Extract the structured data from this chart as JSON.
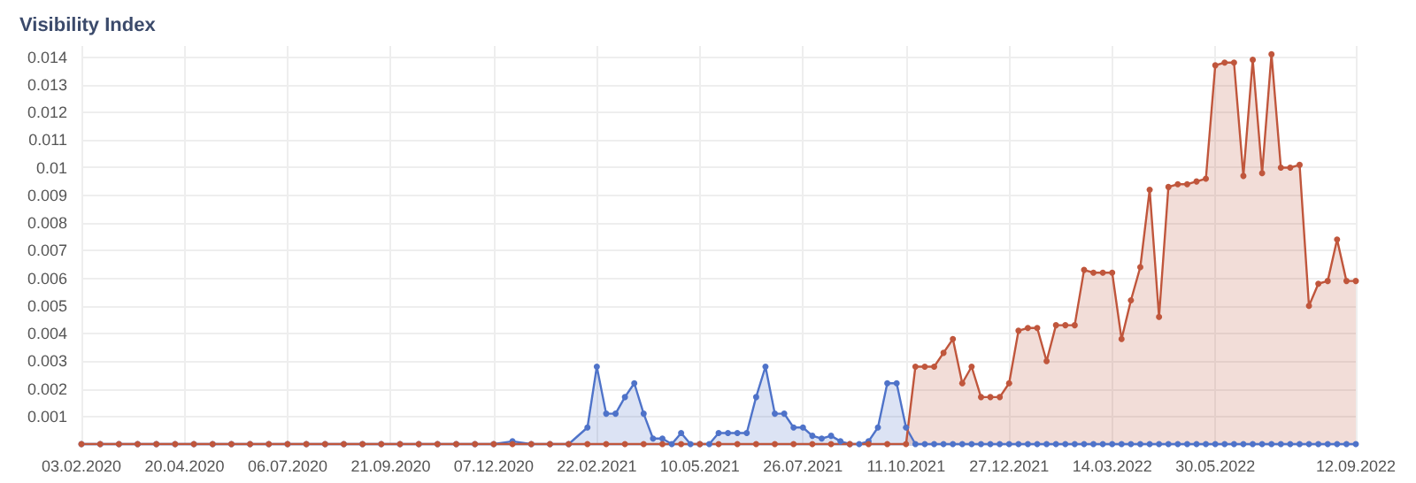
{
  "chart_data": {
    "type": "area",
    "title": "Visibility Index",
    "xlim": [
      "2020-02-03",
      "2022-09-12"
    ],
    "xticks": [
      {
        "value": "2020-02-03",
        "label": "03.02.2020"
      },
      {
        "value": "2020-04-20",
        "label": "20.04.2020"
      },
      {
        "value": "2020-07-06",
        "label": "06.07.2020"
      },
      {
        "value": "2020-09-21",
        "label": "21.09.2020"
      },
      {
        "value": "2020-12-07",
        "label": "07.12.2020"
      },
      {
        "value": "2021-02-22",
        "label": "22.02.2021"
      },
      {
        "value": "2021-05-10",
        "label": "10.05.2021"
      },
      {
        "value": "2021-07-26",
        "label": "26.07.2021"
      },
      {
        "value": "2021-10-11",
        "label": "11.10.2021"
      },
      {
        "value": "2021-12-27",
        "label": "27.12.2021"
      },
      {
        "value": "2022-03-14",
        "label": "14.03.2022"
      },
      {
        "value": "2022-05-30",
        "label": "30.05.2022"
      },
      {
        "value": "2022-09-12",
        "label": "12.09.2022"
      }
    ],
    "ylim": [
      0,
      0.0144
    ],
    "yticks": [
      {
        "value": 0,
        "label": null
      },
      0.001,
      0.002,
      0.003,
      0.004,
      0.005,
      0.006,
      0.007,
      0.008,
      0.009,
      0.01,
      0.011,
      0.012,
      0.013,
      0.014
    ],
    "grid": true,
    "marker": "circle",
    "series": [
      {
        "color": "#4f73c9",
        "x": [
          "2020-02-03",
          "2020-02-17",
          "2020-03-02",
          "2020-03-16",
          "2020-03-30",
          "2020-04-13",
          "2020-04-27",
          "2020-05-11",
          "2020-05-25",
          "2020-06-08",
          "2020-06-22",
          "2020-07-06",
          "2020-07-20",
          "2020-08-03",
          "2020-08-17",
          "2020-08-31",
          "2020-09-14",
          "2020-09-28",
          "2020-10-12",
          "2020-10-26",
          "2020-11-09",
          "2020-11-23",
          "2020-12-07",
          "2020-12-21",
          "2021-01-04",
          "2021-01-18",
          "2021-02-01",
          "2021-02-15",
          "2021-02-22",
          "2021-03-01",
          "2021-03-08",
          "2021-03-15",
          "2021-03-22",
          "2021-03-29",
          "2021-04-05",
          "2021-04-12",
          "2021-04-19",
          "2021-04-26",
          "2021-05-03",
          "2021-05-10",
          "2021-05-17",
          "2021-05-24",
          "2021-05-31",
          "2021-06-07",
          "2021-06-14",
          "2021-06-21",
          "2021-06-28",
          "2021-07-05",
          "2021-07-12",
          "2021-07-19",
          "2021-07-26",
          "2021-08-02",
          "2021-08-09",
          "2021-08-16",
          "2021-08-23",
          "2021-08-30",
          "2021-09-06",
          "2021-09-13",
          "2021-09-20",
          "2021-09-27",
          "2021-10-04",
          "2021-10-11",
          "2021-10-18",
          "2021-10-25",
          "2021-11-01",
          "2021-11-08",
          "2021-11-15",
          "2021-11-22",
          "2021-11-29",
          "2021-12-06",
          "2021-12-13",
          "2021-12-20",
          "2021-12-27",
          "2022-01-03",
          "2022-01-10",
          "2022-01-17",
          "2022-01-24",
          "2022-01-31",
          "2022-02-07",
          "2022-02-14",
          "2022-02-21",
          "2022-02-28",
          "2022-03-07",
          "2022-03-14",
          "2022-03-21",
          "2022-03-28",
          "2022-04-04",
          "2022-04-11",
          "2022-04-18",
          "2022-04-25",
          "2022-05-02",
          "2022-05-09",
          "2022-05-16",
          "2022-05-23",
          "2022-05-30",
          "2022-06-06",
          "2022-06-13",
          "2022-06-20",
          "2022-06-27",
          "2022-07-04",
          "2022-07-11",
          "2022-07-18",
          "2022-07-25",
          "2022-08-01",
          "2022-08-08",
          "2022-08-15",
          "2022-08-22",
          "2022-08-29",
          "2022-09-05",
          "2022-09-12"
        ],
        "values": [
          0,
          0,
          0,
          0,
          0,
          0,
          0,
          0,
          0,
          0,
          0,
          0,
          0,
          0,
          0,
          0,
          0,
          0,
          0,
          0,
          0,
          0,
          0,
          0.0001,
          0,
          0,
          0,
          0.0006,
          0.0028,
          0.0011,
          0.0011,
          0.0017,
          0.0022,
          0.0011,
          0.0002,
          0.0002,
          0,
          0.0004,
          0,
          0,
          0,
          0.0004,
          0.0004,
          0.0004,
          0.0004,
          0.0017,
          0.0028,
          0.0011,
          0.0011,
          0.0006,
          0.0006,
          0.0003,
          0.0002,
          0.0003,
          0.0001,
          0,
          0,
          0.0001,
          0.0006,
          0.0022,
          0.0022,
          0.0006,
          0,
          0,
          0,
          0,
          0,
          0,
          0,
          0,
          0,
          0,
          0,
          0,
          0,
          0,
          0,
          0,
          0,
          0,
          0,
          0,
          0,
          0,
          0,
          0,
          0,
          0,
          0,
          0,
          0,
          0,
          0,
          0,
          0,
          0,
          0,
          0,
          0,
          0,
          0,
          0,
          0,
          0,
          0,
          0,
          0,
          0,
          0,
          0
        ]
      },
      {
        "color": "#c0563c",
        "x": [
          "2020-02-03",
          "2020-02-17",
          "2020-03-02",
          "2020-03-16",
          "2020-03-30",
          "2020-04-13",
          "2020-04-27",
          "2020-05-11",
          "2020-05-25",
          "2020-06-08",
          "2020-06-22",
          "2020-07-06",
          "2020-07-20",
          "2020-08-03",
          "2020-08-17",
          "2020-08-31",
          "2020-09-14",
          "2020-09-28",
          "2020-10-12",
          "2020-10-26",
          "2020-11-09",
          "2020-11-23",
          "2020-12-07",
          "2020-12-21",
          "2021-01-04",
          "2021-01-18",
          "2021-02-01",
          "2021-02-15",
          "2021-03-01",
          "2021-03-15",
          "2021-03-29",
          "2021-04-12",
          "2021-04-26",
          "2021-05-10",
          "2021-05-24",
          "2021-06-07",
          "2021-06-21",
          "2021-07-05",
          "2021-07-19",
          "2021-08-02",
          "2021-08-16",
          "2021-08-30",
          "2021-09-13",
          "2021-09-27",
          "2021-10-11",
          "2021-10-18",
          "2021-10-25",
          "2021-11-01",
          "2021-11-08",
          "2021-11-15",
          "2021-11-22",
          "2021-11-29",
          "2021-12-06",
          "2021-12-13",
          "2021-12-20",
          "2021-12-27",
          "2022-01-03",
          "2022-01-10",
          "2022-01-17",
          "2022-01-24",
          "2022-01-31",
          "2022-02-07",
          "2022-02-14",
          "2022-02-21",
          "2022-02-28",
          "2022-03-07",
          "2022-03-14",
          "2022-03-21",
          "2022-03-28",
          "2022-04-04",
          "2022-04-11",
          "2022-04-18",
          "2022-04-25",
          "2022-05-02",
          "2022-05-09",
          "2022-05-16",
          "2022-05-23",
          "2022-05-30",
          "2022-06-06",
          "2022-06-13",
          "2022-06-20",
          "2022-06-27",
          "2022-07-04",
          "2022-07-11",
          "2022-07-18",
          "2022-07-25",
          "2022-08-01",
          "2022-08-08",
          "2022-08-15",
          "2022-08-22",
          "2022-08-29",
          "2022-09-05",
          "2022-09-12"
        ],
        "values": [
          0,
          0,
          0,
          0,
          0,
          0,
          0,
          0,
          0,
          0,
          0,
          0,
          0,
          0,
          0,
          0,
          0,
          0,
          0,
          0,
          0,
          0,
          0,
          0,
          0,
          0,
          0,
          0,
          0,
          0,
          0,
          0,
          0,
          0,
          0,
          0,
          0,
          0,
          0,
          0,
          0,
          0,
          0,
          0,
          0,
          0.0028,
          0.0028,
          0.0028,
          0.0033,
          0.0038,
          0.0022,
          0.0028,
          0.0017,
          0.0017,
          0.0017,
          0.0022,
          0.0041,
          0.0042,
          0.0042,
          0.003,
          0.0043,
          0.0043,
          0.0043,
          0.0063,
          0.0062,
          0.0062,
          0.0062,
          0.0038,
          0.0052,
          0.0064,
          0.0092,
          0.0046,
          0.0093,
          0.0094,
          0.0094,
          0.0095,
          0.0096,
          0.0137,
          0.0138,
          0.0138,
          0.0097,
          0.0139,
          0.0098,
          0.0141,
          0.01,
          0.01,
          0.0101,
          0.005,
          0.0058,
          0.0059,
          0.0074,
          0.0059,
          0.0059
        ]
      }
    ]
  }
}
